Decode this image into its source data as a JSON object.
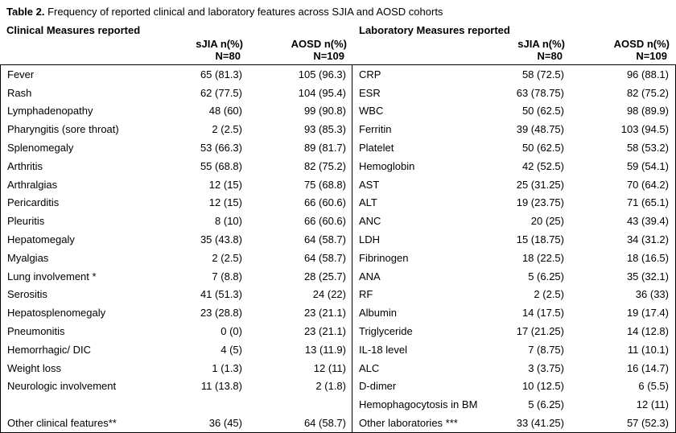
{
  "caption": {
    "label": "Table 2.",
    "text": " Frequency of reported clinical and laboratory features across SJIA and AOSD cohorts"
  },
  "clinical": {
    "header": "Clinical Measures reported",
    "col1": {
      "line1": "sJIA n(%)",
      "line2": "N=80"
    },
    "col2": {
      "line1": "AOSD n(%)",
      "line2": "N=109"
    },
    "rows": [
      {
        "label": "Fever",
        "sjia": "65 (81.3)",
        "aosd": "105 (96.3)"
      },
      {
        "label": "Rash",
        "sjia": "62 (77.5)",
        "aosd": "104 (95.4)"
      },
      {
        "label": "Lymphadenopathy",
        "sjia": "48 (60)",
        "aosd": "99 (90.8)"
      },
      {
        "label": "Pharyngitis (sore throat)",
        "sjia": "2 (2.5)",
        "aosd": "93 (85.3)"
      },
      {
        "label": "Splenomegaly",
        "sjia": "53 (66.3)",
        "aosd": "89 (81.7)"
      },
      {
        "label": "Arthritis",
        "sjia": "55 (68.8)",
        "aosd": "82 (75.2)"
      },
      {
        "label": "Arthralgias",
        "sjia": "12 (15)",
        "aosd": "75 (68.8)"
      },
      {
        "label": "Pericarditis",
        "sjia": "12 (15)",
        "aosd": "66 (60.6)"
      },
      {
        "label": "Pleuritis",
        "sjia": "8 (10)",
        "aosd": "66 (60.6)"
      },
      {
        "label": "Hepatomegaly",
        "sjia": "35 (43.8)",
        "aosd": "64 (58.7)"
      },
      {
        "label": "Myalgias",
        "sjia": "2 (2.5)",
        "aosd": "64 (58.7)"
      },
      {
        "label": "Lung involvement *",
        "sjia": "7 (8.8)",
        "aosd": "28 (25.7)"
      },
      {
        "label": "Serositis",
        "sjia": "41 (51.3)",
        "aosd": "24 (22)"
      },
      {
        "label": "Hepatosplenomegaly",
        "sjia": "23 (28.8)",
        "aosd": "23 (21.1)"
      },
      {
        "label": "Pneumonitis",
        "sjia": "0 (0)",
        "aosd": "23 (21.1)"
      },
      {
        "label": "Hemorrhagic/ DIC",
        "sjia": "4 (5)",
        "aosd": "13 (11.9)"
      },
      {
        "label": "Weight loss",
        "sjia": "1 (1.3)",
        "aosd": "12 (11)"
      },
      {
        "label": "Neurologic involvement",
        "sjia": "11 (13.8)",
        "aosd": "2 (1.8)"
      },
      {
        "label": "",
        "sjia": "",
        "aosd": ""
      },
      {
        "label": "Other clinical features**",
        "sjia": "36 (45)",
        "aosd": "64 (58.7)"
      }
    ]
  },
  "laboratory": {
    "header": "Laboratory Measures reported",
    "col1": {
      "line1": "sJIA n(%)",
      "line2": "N=80"
    },
    "col2": {
      "line1": "AOSD n(%)",
      "line2": "N=109"
    },
    "rows": [
      {
        "label": "CRP",
        "sjia": "58 (72.5)",
        "aosd": "96 (88.1)"
      },
      {
        "label": "ESR",
        "sjia": "63 (78.75)",
        "aosd": "82 (75.2)"
      },
      {
        "label": "WBC",
        "sjia": "50 (62.5)",
        "aosd": "98 (89.9)"
      },
      {
        "label": "Ferritin",
        "sjia": "39 (48.75)",
        "aosd": "103 (94.5)"
      },
      {
        "label": "Platelet",
        "sjia": "50 (62.5)",
        "aosd": "58 (53.2)"
      },
      {
        "label": "Hemoglobin",
        "sjia": "42 (52.5)",
        "aosd": "59 (54.1)"
      },
      {
        "label": "AST",
        "sjia": "25 (31.25)",
        "aosd": "70 (64.2)"
      },
      {
        "label": "ALT",
        "sjia": "19 (23.75)",
        "aosd": "71 (65.1)"
      },
      {
        "label": "ANC",
        "sjia": "20 (25)",
        "aosd": "43 (39.4)"
      },
      {
        "label": "LDH",
        "sjia": "15 (18.75)",
        "aosd": "34 (31.2)"
      },
      {
        "label": "Fibrinogen",
        "sjia": "18 (22.5)",
        "aosd": "18 (16.5)"
      },
      {
        "label": "ANA",
        "sjia": "5 (6.25)",
        "aosd": "35 (32.1)"
      },
      {
        "label": "RF",
        "sjia": "2 (2.5)",
        "aosd": "36 (33)"
      },
      {
        "label": "Albumin",
        "sjia": "14 (17.5)",
        "aosd": "19 (17.4)"
      },
      {
        "label": "Triglyceride",
        "sjia": "17 (21.25)",
        "aosd": "14 (12.8)"
      },
      {
        "label": "IL-18 level",
        "sjia": "7 (8.75)",
        "aosd": "11 (10.1)"
      },
      {
        "label": "ALC",
        "sjia": "3 (3.75)",
        "aosd": "16 (14.7)"
      },
      {
        "label": "D-dimer",
        "sjia": "10 (12.5)",
        "aosd": "6 (5.5)"
      },
      {
        "label": "Hemophagocytosis in BM",
        "sjia": "5 (6.25)",
        "aosd": "12 (11)"
      },
      {
        "label": "Other laboratories ***",
        "sjia": "33 (41.25)",
        "aosd": "57 (52.3)"
      }
    ]
  }
}
